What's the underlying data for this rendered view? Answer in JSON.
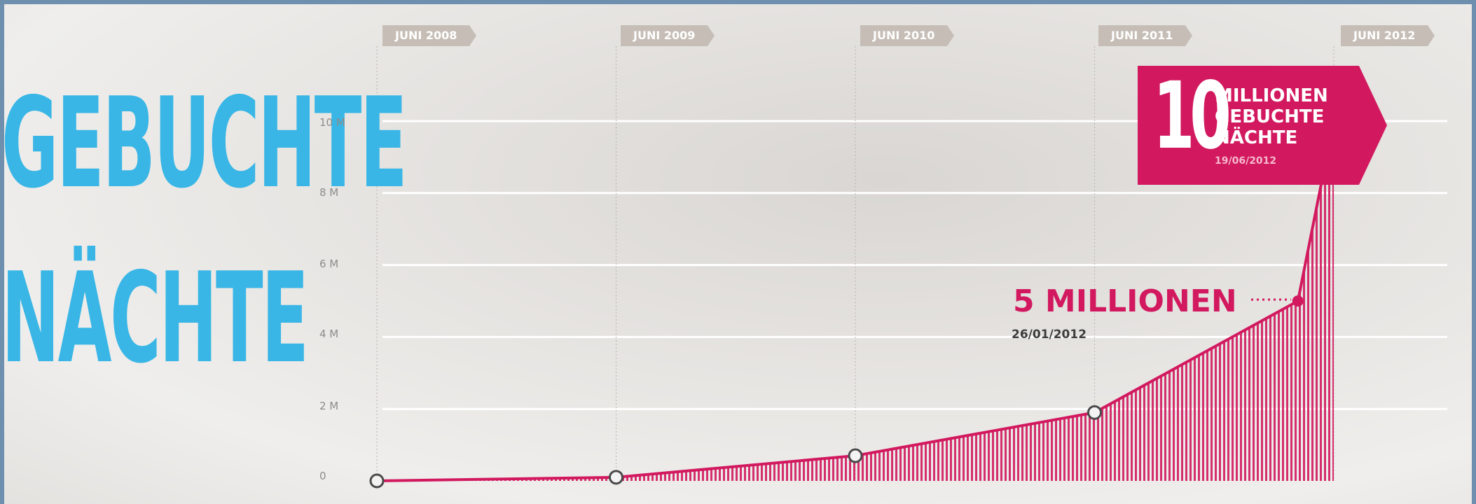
{
  "colors": {
    "accent": "#d2195f",
    "title": "#39b6e6",
    "tab": "#c6beb6",
    "frame": "#6f8fae",
    "point_fill": "#f3f3f3",
    "point_stroke": "#4a4a4a"
  },
  "title_line1": "GEBUCHTE",
  "title_line2": "NÄCHTE",
  "callout": {
    "big_number": "10",
    "line1": "MILLIONEN",
    "line2": "GEBUCHTE",
    "line3": "NÄCHTE",
    "date": "19/06/2012"
  },
  "milestone": {
    "label": "5 MILLIONEN",
    "date": "26/01/2012"
  },
  "chart_data": {
    "type": "area",
    "x_labels": [
      "JUNI 2008",
      "JUNI 2009",
      "JUNI 2010",
      "JUNI 2011",
      "JUNI 2012"
    ],
    "y_tick_labels": [
      "0",
      "2 M",
      "4 M",
      "6 M",
      "8 M",
      "10 M"
    ],
    "ylim": [
      0,
      10
    ],
    "series": [
      {
        "points": [
          {
            "x": 0,
            "y": 0
          },
          {
            "x": 1,
            "y": 0.1
          },
          {
            "x": 2,
            "y": 0.7
          },
          {
            "x": 3,
            "y": 1.9
          },
          {
            "x": 3.85,
            "y": 5
          },
          {
            "x": 4.0,
            "y": 10
          }
        ],
        "marker_points": [
          0,
          1,
          2,
          3,
          5
        ],
        "highlight_point": 4
      }
    ],
    "grid": true
  }
}
